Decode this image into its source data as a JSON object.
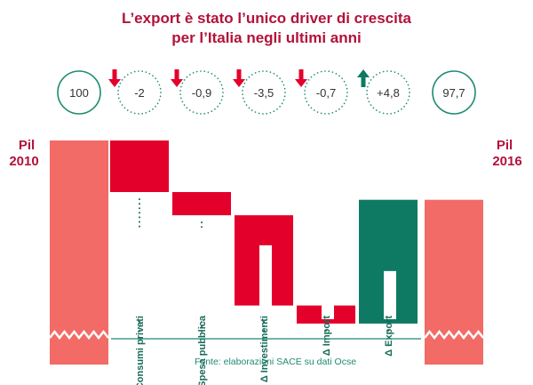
{
  "title_lines": [
    "L’export è stato l’unico driver di crescita",
    "per l’Italia negli ultimi anni"
  ],
  "source": "Fonte: elaborazioni SACE su dati Ocse",
  "colors": {
    "title": "#b3123a",
    "total_bar": "#f26b66",
    "negative_bar": "#e3002b",
    "positive_bar": "#0f7a64",
    "teal_lines": "#1f8a72",
    "down_arrow": "#e3002b",
    "up_arrow": "#0f7a64"
  },
  "chart_data": {
    "type": "bar",
    "subtype": "waterfall",
    "start": {
      "label_lines": [
        "Pil",
        "2010"
      ],
      "value": 100,
      "display": "100"
    },
    "steps": [
      {
        "label": "Δ Consumi privati",
        "value": -2,
        "display": "-2",
        "direction": "down"
      },
      {
        "label": "Δ Spesa pubblica",
        "value": -0.9,
        "display": "-0,9",
        "direction": "down"
      },
      {
        "label": "Δ Investimenti",
        "value": -3.5,
        "display": "-3,5",
        "direction": "down"
      },
      {
        "label": "Δ Import",
        "value": -0.7,
        "display": "-0,7",
        "direction": "down"
      },
      {
        "label": "Δ Export",
        "value": 4.8,
        "display": "+4,8",
        "direction": "up"
      }
    ],
    "end": {
      "label_lines": [
        "Pil",
        "2016"
      ],
      "value": 97.7,
      "display": "97,7"
    },
    "axis": "broken",
    "grid": false
  }
}
